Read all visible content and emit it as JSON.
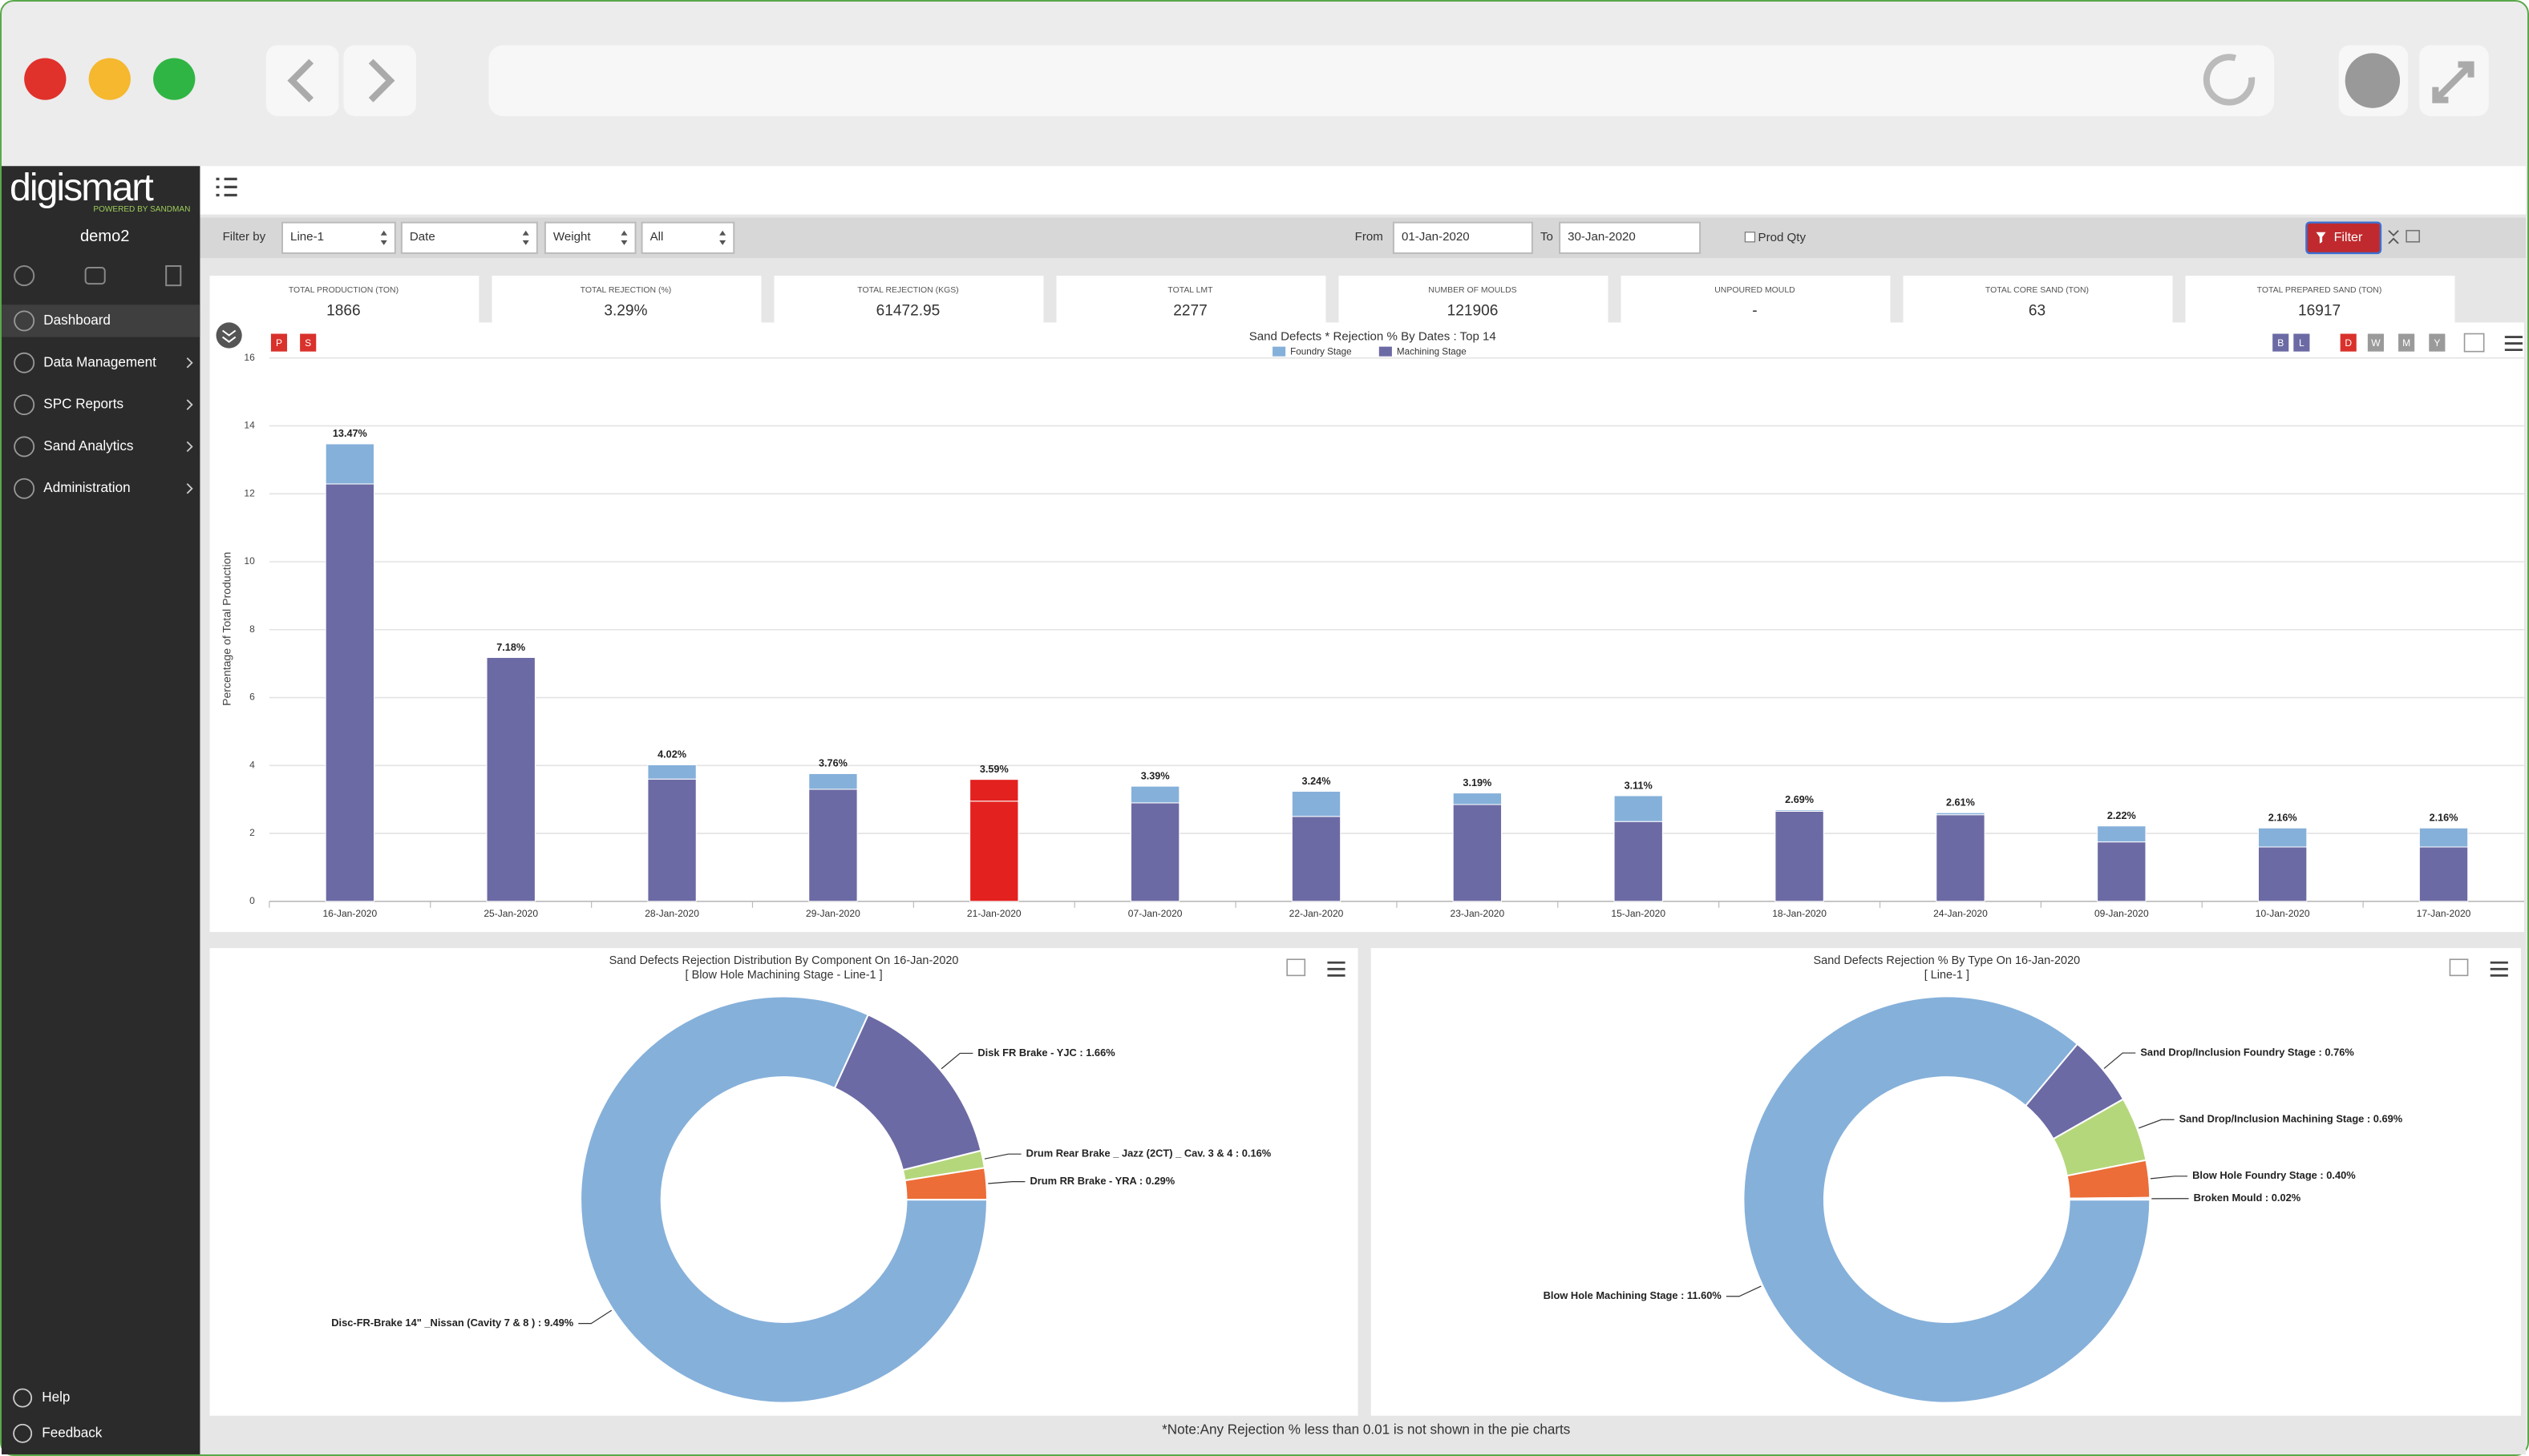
{
  "sidebar": {
    "logo": "digismart",
    "logo_tagline": "POWERED BY SANDMAN",
    "user": "demo2",
    "menu": [
      "Dashboard",
      "Data Management",
      "SPC Reports",
      "Sand Analytics",
      "Administration"
    ],
    "footer": [
      "Help",
      "Feedback"
    ]
  },
  "filter_bar": {
    "label": "Filter by",
    "selects": [
      "Line-1",
      "Date",
      "Weight",
      "All"
    ],
    "from_label": "From",
    "from": "01-Jan-2020",
    "to_label": "To",
    "to": "30-Jan-2020",
    "checkbox": "Prod Qty",
    "button": "Filter"
  },
  "kpis": [
    {
      "label": "TOTAL PRODUCTION (TON)",
      "value": "1866"
    },
    {
      "label": "TOTAL REJECTION (%)",
      "value": "3.29%"
    },
    {
      "label": "TOTAL REJECTION (KGS)",
      "value": "61472.95"
    },
    {
      "label": "TOTAL LMT",
      "value": "2277"
    },
    {
      "label": "NUMBER OF MOULDS",
      "value": "121906"
    },
    {
      "label": "UNPOURED MOULD",
      "value": "-"
    },
    {
      "label": "TOTAL CORE SAND (TON)",
      "value": "63"
    },
    {
      "label": "TOTAL PREPARED SAND (TON)",
      "value": "16917"
    }
  ],
  "chart_buttons": {
    "left": [
      "P",
      "S"
    ],
    "right": [
      "B",
      "L",
      "D",
      "W",
      "M",
      "Y"
    ]
  },
  "chart_data": [
    {
      "type": "bar",
      "stacked": true,
      "title": "Sand Defects * Rejection % By Dates : Top 14",
      "ylabel": "Percentage of Total Production",
      "categories": [
        "16-Jan-2020",
        "25-Jan-2020",
        "28-Jan-2020",
        "29-Jan-2020",
        "21-Jan-2020",
        "07-Jan-2020",
        "22-Jan-2020",
        "23-Jan-2020",
        "15-Jan-2020",
        "18-Jan-2020",
        "24-Jan-2020",
        "09-Jan-2020",
        "10-Jan-2020",
        "17-Jan-2020"
      ],
      "series": [
        {
          "name": "Foundry Stage",
          "color": "#85b0da",
          "values": [
            1.18,
            0,
            0.42,
            0.46,
            0.64,
            0.49,
            0.74,
            0.34,
            0.76,
            0.04,
            0.06,
            0.47,
            0.56,
            0.56
          ]
        },
        {
          "name": "Machining Stage",
          "color": "#6c6aa4",
          "values": [
            12.29,
            7.18,
            3.6,
            3.3,
            2.95,
            2.9,
            2.5,
            2.85,
            2.35,
            2.65,
            2.55,
            1.75,
            1.6,
            1.6
          ]
        }
      ],
      "total_labels": [
        "13.47%",
        "7.18%",
        "4.02%",
        "3.76%",
        "3.59%",
        "3.39%",
        "3.24%",
        "3.19%",
        "3.11%",
        "2.69%",
        "2.61%",
        "2.22%",
        "2.16%",
        "2.16%"
      ],
      "highlight_index": 4,
      "highlight_color": "#e3211f",
      "ylim": [
        0,
        16
      ],
      "yticks": [
        0,
        2,
        4,
        6,
        8,
        10,
        12,
        14,
        16
      ],
      "grid": true
    },
    {
      "type": "pie",
      "donut": true,
      "title": "Sand Defects Rejection Distribution By Component On 16-Jan-2020",
      "subtitle": "[ Blow Hole Machining Stage - Line-1 ]",
      "labels": [
        "Disc-FR-Brake 14\" _Nissan (Cavity 7 & 8 ) : 9.49%",
        "Disk FR Brake - YJC : 1.66%",
        "Drum Rear Brake _ Jazz (2CT) _ Cav. 3 & 4 : 0.16%",
        "Drum RR Brake - YRA : 0.29%"
      ],
      "values": [
        9.49,
        1.66,
        0.16,
        0.29
      ],
      "colors": [
        "#85b0da",
        "#6c6aa4",
        "#b5d77b",
        "#ec6d37"
      ]
    },
    {
      "type": "pie",
      "donut": true,
      "title": "Sand Defects Rejection % By Type On 16-Jan-2020",
      "subtitle": "[ Line-1 ]",
      "labels": [
        "Blow Hole Machining Stage : 11.60%",
        "Sand Drop/Inclusion Foundry Stage : 0.76%",
        "Sand Drop/Inclusion Machining Stage : 0.69%",
        "Blow Hole Foundry Stage : 0.40%",
        "Broken Mould : 0.02%"
      ],
      "values": [
        11.6,
        0.76,
        0.69,
        0.4,
        0.02
      ],
      "colors": [
        "#85b0da",
        "#6c6aa4",
        "#b5d77b",
        "#ec6d37",
        "#7cb5ec"
      ]
    }
  ],
  "note": "*Note:Any Rejection % less than 0.01 is not shown in the pie charts"
}
